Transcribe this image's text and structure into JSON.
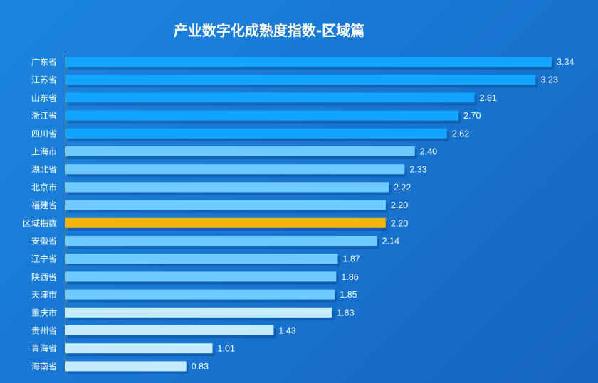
{
  "chart_data": {
    "type": "bar",
    "orientation": "horizontal",
    "title": "产业数字化成熟度指数-区域篇",
    "xlabel": "",
    "ylabel": "",
    "xlim": [
      0,
      3.34
    ],
    "grid": false,
    "categories": [
      "广东省",
      "江苏省",
      "山东省",
      "浙江省",
      "四川省",
      "上海市",
      "湖北省",
      "北京市",
      "福建省",
      "区域指数",
      "安徽省",
      "辽宁省",
      "陕西省",
      "天津市",
      "重庆市",
      "贵州省",
      "青海省",
      "海南省"
    ],
    "values": [
      3.34,
      3.23,
      2.81,
      2.7,
      2.62,
      2.4,
      2.33,
      2.22,
      2.2,
      2.2,
      2.14,
      1.87,
      1.86,
      1.85,
      1.83,
      1.43,
      1.01,
      0.83
    ],
    "value_labels": [
      "3.34",
      "3.23",
      "2.81",
      "2.70",
      "2.62",
      "2.40",
      "2.33",
      "2.22",
      "2.20",
      "2.20",
      "2.14",
      "1.87",
      "1.86",
      "1.85",
      "1.83",
      "1.43",
      "1.01",
      "0.83"
    ],
    "bar_colors": [
      "#10a6ff",
      "#10a6ff",
      "#10a6ff",
      "#10a6ff",
      "#10a6ff",
      "#6fcbff",
      "#6fcbff",
      "#6fcbff",
      "#6fcbff",
      "#f5b40c",
      "#6fcbff",
      "#6fcbff",
      "#6fcbff",
      "#6fcbff",
      "#c3ecff",
      "#c3ecff",
      "#c3ecff",
      "#c3ecff"
    ],
    "highlight_category": "区域指数"
  }
}
